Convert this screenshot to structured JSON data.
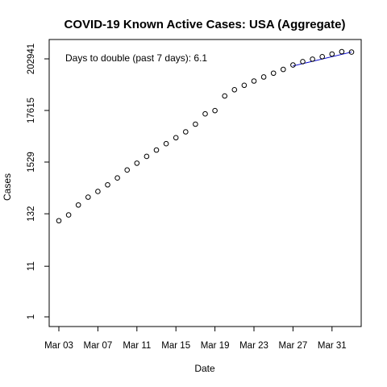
{
  "chart_data": {
    "type": "scatter",
    "title": "COVID-19 Known Active Cases: USA (Aggregate)",
    "xlabel": "Date",
    "ylabel": "Cases",
    "y_scale": "log",
    "ylim": [
      1,
      400000
    ],
    "x_tick_labels": [
      "Mar 03",
      "Mar 07",
      "Mar 11",
      "Mar 15",
      "Mar 19",
      "Mar 23",
      "Mar 27",
      "Mar 31"
    ],
    "y_tick_labels": [
      "1",
      "11",
      "132",
      "1529",
      "17615",
      "202941"
    ],
    "y_tick_values": [
      1,
      11,
      132,
      1529,
      17615,
      202941
    ],
    "annotation": "Days to double (past 7 days): 6.1",
    "x": [
      "Mar 03",
      "Mar 04",
      "Mar 05",
      "Mar 06",
      "Mar 07",
      "Mar 08",
      "Mar 09",
      "Mar 10",
      "Mar 11",
      "Mar 12",
      "Mar 13",
      "Mar 14",
      "Mar 15",
      "Mar 16",
      "Mar 17",
      "Mar 18",
      "Mar 19",
      "Mar 20",
      "Mar 21",
      "Mar 22",
      "Mar 23",
      "Mar 24",
      "Mar 25",
      "Mar 26",
      "Mar 27",
      "Mar 28",
      "Mar 29",
      "Mar 30",
      "Mar 31",
      "Apr 01",
      "Apr 02"
    ],
    "values": [
      95,
      125,
      200,
      290,
      380,
      520,
      720,
      1050,
      1450,
      2000,
      2700,
      3650,
      4850,
      6400,
      9200,
      15000,
      17500,
      35000,
      47000,
      58000,
      71000,
      86000,
      103000,
      123000,
      152000,
      178000,
      200000,
      225000,
      255000,
      285000,
      280000
    ],
    "fit_line": {
      "x": [
        "Mar 27",
        "Apr 02"
      ],
      "values": [
        145000,
        280000
      ]
    },
    "colors": {
      "points": "#000000",
      "fit_line": "#0000cc",
      "axis": "#000000"
    }
  }
}
